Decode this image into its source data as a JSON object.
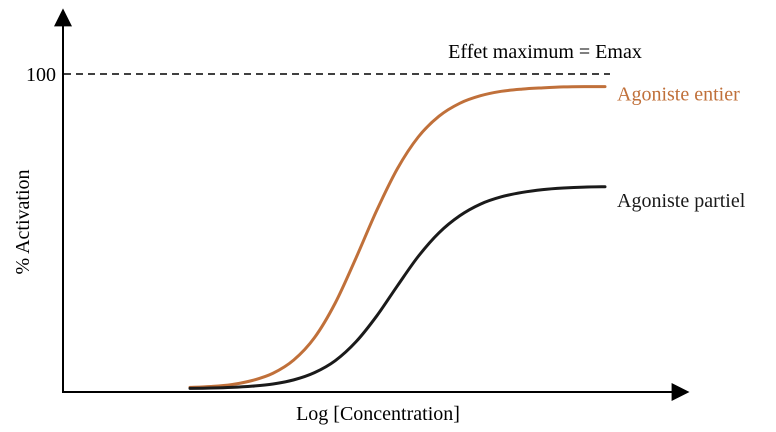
{
  "chart_data": {
    "type": "line",
    "xlabel": "Log [Concentration]",
    "ylabel": "% Activation",
    "ylim": [
      0,
      100
    ],
    "y_ticks": [
      100
    ],
    "x_ticks": [],
    "grid": false,
    "reference_line": {
      "y": 100,
      "style": "dashed",
      "label": "Effet maximum = Emax"
    },
    "series": [
      {
        "name": "Agoniste entier",
        "color": "#c0703a",
        "label_position": "end",
        "x": [
          0.0,
          0.05,
          0.1,
          0.15,
          0.2,
          0.25,
          0.3,
          0.35,
          0.4,
          0.45,
          0.5,
          0.55,
          0.6,
          0.65,
          0.7,
          0.75,
          0.8,
          0.85,
          0.9,
          0.95,
          1.0
        ],
        "values": [
          0.5,
          0.8,
          1.4,
          2.7,
          5.0,
          9.2,
          16.3,
          27.3,
          41.6,
          56.7,
          70.0,
          80.0,
          86.6,
          90.7,
          93.1,
          94.5,
          95.2,
          95.6,
          95.9,
          96.0,
          96.0
        ]
      },
      {
        "name": "Agoniste partiel",
        "color": "#1a1a1a",
        "label_position": "end",
        "x": [
          0.0,
          0.05,
          0.1,
          0.15,
          0.2,
          0.25,
          0.3,
          0.35,
          0.4,
          0.45,
          0.5,
          0.55,
          0.6,
          0.65,
          0.7,
          0.75,
          0.8,
          0.85,
          0.9,
          0.95,
          1.0
        ],
        "values": [
          0.2,
          0.3,
          0.5,
          0.9,
          1.6,
          2.9,
          5.2,
          9.0,
          15.0,
          23.2,
          32.8,
          42.1,
          49.6,
          55.0,
          58.7,
          61.0,
          62.4,
          63.3,
          63.8,
          64.1,
          64.2
        ]
      }
    ]
  }
}
